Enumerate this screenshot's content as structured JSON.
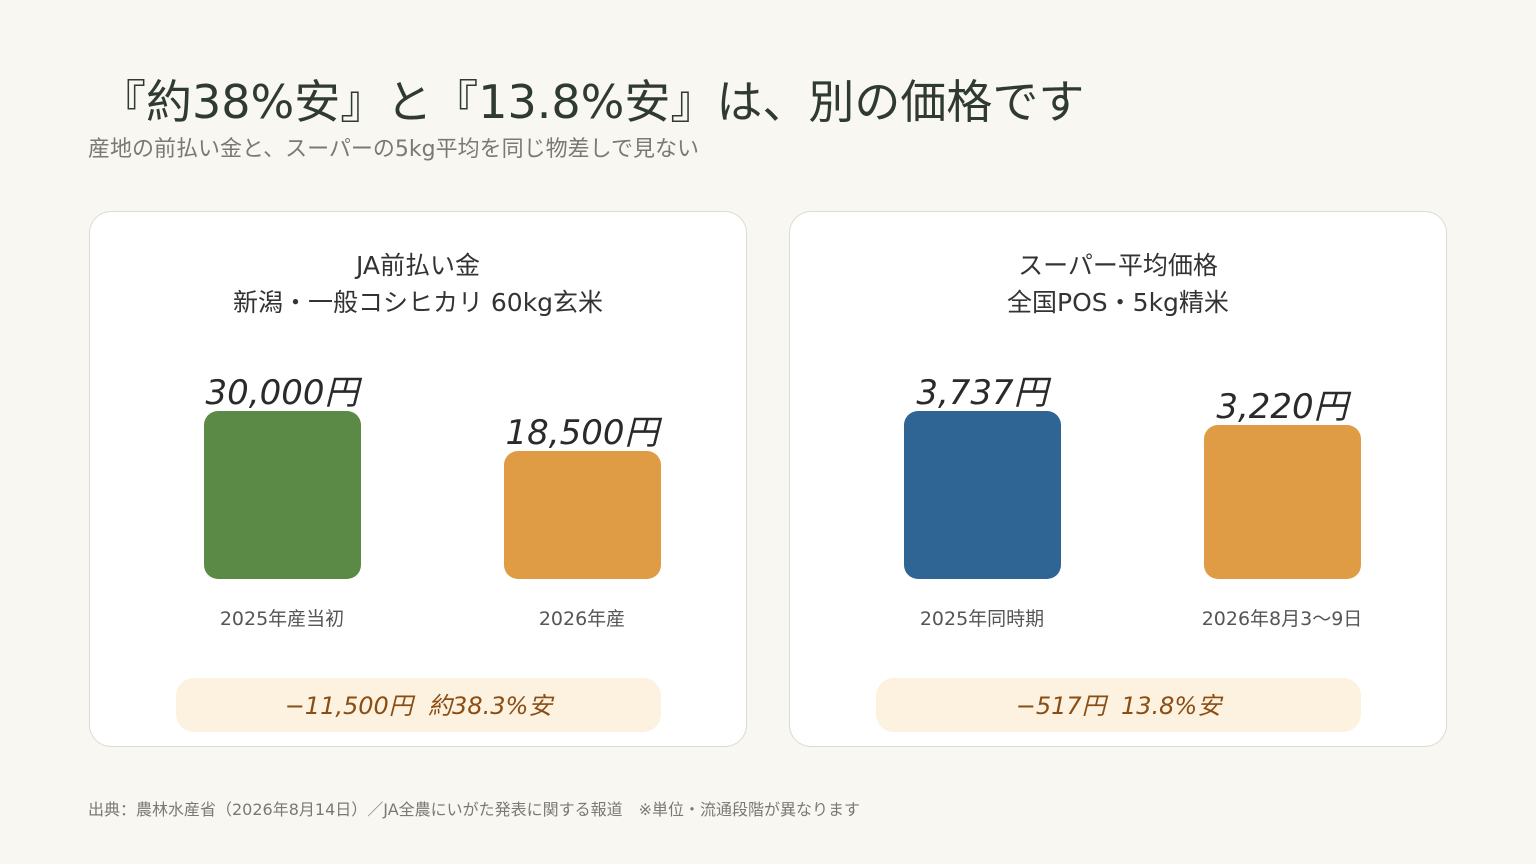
{
  "title": "『約38%安』と『13.8%安』は、別の価格です",
  "subtitle": "産地の前払い金と、スーパーの5kg平均を同じ物差しで見ない",
  "chart_data": [
    {
      "type": "bar",
      "title_line1": "JA前払い金",
      "title_line2": "新潟・一般コシヒカリ 60kg玄米",
      "categories": [
        "2025年産当初",
        "2026年産"
      ],
      "values": [
        30000,
        18500
      ],
      "value_labels": [
        "30,000円",
        "18,500円"
      ],
      "colors": [
        "#5b8a46",
        "#e09b45"
      ],
      "ylim": [
        0,
        30000
      ],
      "difference": "−11,500円",
      "percent": "約38.3%安"
    },
    {
      "type": "bar",
      "title_line1": "スーパー平均価格",
      "title_line2": "全国POS・5kg精米",
      "categories": [
        "2025年同時期",
        "2026年8月3〜9日"
      ],
      "values": [
        3737,
        3220
      ],
      "value_labels": [
        "3,737円",
        "3,220円"
      ],
      "colors": [
        "#2f6594",
        "#e09b45"
      ],
      "ylim": [
        0,
        3737
      ],
      "difference": "−517円",
      "percent": "13.8%安"
    }
  ],
  "source": "出典：農林水産省（2026年8月14日）／JA全農にいがた発表に関する報道　※単位・流通段階が異なります"
}
